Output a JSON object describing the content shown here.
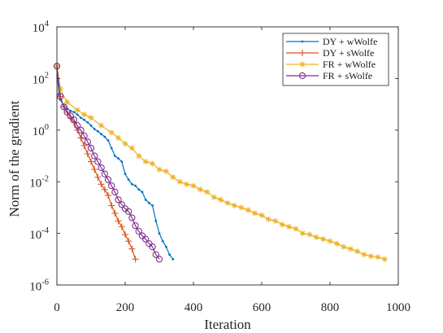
{
  "chart_data": {
    "type": "line",
    "xlabel": "Iteration",
    "ylabel": "Norm of the gradient",
    "xlim": [
      0,
      1000
    ],
    "ylim_log10": [
      -6,
      4
    ],
    "y_scale": "log",
    "x_ticks": [
      "0",
      "200",
      "400",
      "600",
      "800",
      "1000"
    ],
    "y_ticks": [
      {
        "base": "10",
        "exp": "4"
      },
      {
        "base": "10",
        "exp": "2"
      },
      {
        "base": "10",
        "exp": "0"
      },
      {
        "base": "10",
        "exp": "-2"
      },
      {
        "base": "10",
        "exp": "-4"
      },
      {
        "base": "10",
        "exp": "-6"
      }
    ],
    "grid": false,
    "legend_position": "top-right",
    "series": [
      {
        "name": "DY + wWolfe",
        "color": "#0072BD",
        "marker": "dot",
        "points": [
          [
            0,
            300
          ],
          [
            5,
            25
          ],
          [
            10,
            15
          ],
          [
            20,
            9
          ],
          [
            30,
            7
          ],
          [
            40,
            5.5
          ],
          [
            50,
            5
          ],
          [
            60,
            4
          ],
          [
            70,
            3
          ],
          [
            80,
            2.5
          ],
          [
            90,
            2
          ],
          [
            100,
            1.5
          ],
          [
            110,
            1.1
          ],
          [
            120,
            0.9
          ],
          [
            130,
            0.7
          ],
          [
            140,
            0.55
          ],
          [
            150,
            0.4
          ],
          [
            160,
            0.2
          ],
          [
            170,
            0.1
          ],
          [
            180,
            0.08
          ],
          [
            190,
            0.06
          ],
          [
            200,
            0.02
          ],
          [
            210,
            0.012
          ],
          [
            220,
            0.008
          ],
          [
            230,
            0.007
          ],
          [
            240,
            0.005
          ],
          [
            250,
            0.004
          ],
          [
            260,
            0.002
          ],
          [
            270,
            0.0015
          ],
          [
            280,
            0.0012
          ],
          [
            290,
            0.0003
          ],
          [
            300,
            0.0001
          ],
          [
            310,
            5e-05
          ],
          [
            320,
            3e-05
          ],
          [
            330,
            1.5e-05
          ],
          [
            340,
            1e-05
          ]
        ]
      },
      {
        "name": "DY + sWolfe",
        "color": "#D95319",
        "marker": "plus",
        "points": [
          [
            0,
            300
          ],
          [
            10,
            20
          ],
          [
            20,
            8
          ],
          [
            30,
            5
          ],
          [
            40,
            3
          ],
          [
            50,
            2
          ],
          [
            60,
            1
          ],
          [
            70,
            0.5
          ],
          [
            80,
            0.25
          ],
          [
            90,
            0.12
          ],
          [
            100,
            0.06
          ],
          [
            110,
            0.03
          ],
          [
            120,
            0.015
          ],
          [
            130,
            0.008
          ],
          [
            140,
            0.005
          ],
          [
            150,
            0.003
          ],
          [
            160,
            0.0012
          ],
          [
            170,
            0.0006
          ],
          [
            180,
            0.0003
          ],
          [
            190,
            0.00018
          ],
          [
            200,
            9e-05
          ],
          [
            210,
            5e-05
          ],
          [
            220,
            2.5e-05
          ],
          [
            230,
            1e-05
          ]
        ]
      },
      {
        "name": "FR + wWolfe",
        "color": "#EDB120",
        "marker": "asterisk",
        "points": [
          [
            0,
            300
          ],
          [
            10,
            40
          ],
          [
            30,
            12
          ],
          [
            60,
            6
          ],
          [
            80,
            4
          ],
          [
            100,
            3
          ],
          [
            130,
            1.5
          ],
          [
            160,
            0.8
          ],
          [
            180,
            0.5
          ],
          [
            200,
            0.3
          ],
          [
            220,
            0.2
          ],
          [
            240,
            0.1
          ],
          [
            260,
            0.06
          ],
          [
            280,
            0.05
          ],
          [
            300,
            0.03
          ],
          [
            320,
            0.025
          ],
          [
            340,
            0.015
          ],
          [
            360,
            0.01
          ],
          [
            380,
            0.008
          ],
          [
            400,
            0.007
          ],
          [
            420,
            0.005
          ],
          [
            440,
            0.004
          ],
          [
            460,
            0.0025
          ],
          [
            480,
            0.002
          ],
          [
            500,
            0.0015
          ],
          [
            520,
            0.0012
          ],
          [
            540,
            0.001
          ],
          [
            560,
            0.0008
          ],
          [
            580,
            0.0006
          ],
          [
            600,
            0.0005
          ],
          [
            620,
            0.00035
          ],
          [
            640,
            0.0003
          ],
          [
            660,
            0.00022
          ],
          [
            680,
            0.00018
          ],
          [
            700,
            0.00015
          ],
          [
            720,
            0.0001
          ],
          [
            740,
            9e-05
          ],
          [
            760,
            7e-05
          ],
          [
            780,
            6e-05
          ],
          [
            800,
            5e-05
          ],
          [
            820,
            4e-05
          ],
          [
            840,
            3e-05
          ],
          [
            860,
            2.5e-05
          ],
          [
            880,
            2e-05
          ],
          [
            900,
            1.5e-05
          ],
          [
            920,
            1.3e-05
          ],
          [
            940,
            1.2e-05
          ],
          [
            960,
            1e-05
          ]
        ]
      },
      {
        "name": "FR + sWolfe",
        "color": "#7E2F8E",
        "marker": "circle",
        "points": [
          [
            0,
            300
          ],
          [
            10,
            20
          ],
          [
            20,
            8
          ],
          [
            30,
            5
          ],
          [
            40,
            3.5
          ],
          [
            50,
            2.5
          ],
          [
            60,
            1.5
          ],
          [
            70,
            1
          ],
          [
            80,
            0.6
          ],
          [
            90,
            0.35
          ],
          [
            100,
            0.2
          ],
          [
            110,
            0.1
          ],
          [
            120,
            0.06
          ],
          [
            130,
            0.035
          ],
          [
            140,
            0.02
          ],
          [
            150,
            0.012
          ],
          [
            160,
            0.007
          ],
          [
            170,
            0.004
          ],
          [
            180,
            0.002
          ],
          [
            190,
            0.0013
          ],
          [
            200,
            0.0009
          ],
          [
            210,
            0.0007
          ],
          [
            220,
            0.0004
          ],
          [
            230,
            0.0002
          ],
          [
            240,
            0.00012
          ],
          [
            250,
            8e-05
          ],
          [
            260,
            6e-05
          ],
          [
            270,
            4e-05
          ],
          [
            280,
            3e-05
          ],
          [
            290,
            1.5e-05
          ],
          [
            300,
            1e-05
          ]
        ]
      }
    ]
  }
}
